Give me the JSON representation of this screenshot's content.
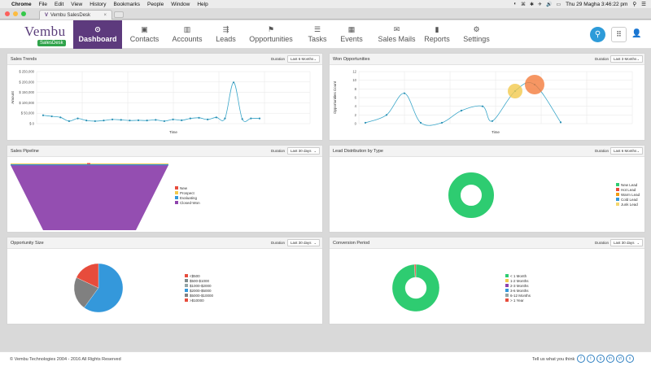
{
  "mac_menu": {
    "apple": "",
    "items": [
      "Chrome",
      "File",
      "Edit",
      "View",
      "History",
      "Bookmarks",
      "People",
      "Window",
      "Help"
    ],
    "tray_icons": [
      "dropbox-icon",
      "wifi-icon",
      "volume-icon",
      "battery-icon"
    ],
    "clock": "Thu 29 Magha  3:46:22 pm",
    "tray_symbols": [
      "◐",
      "⌘",
      "✱",
      "✈",
      "🔊",
      "▭"
    ]
  },
  "browser": {
    "tab_title": "Vembu SalesDesk",
    "tab_icon": "V",
    "close": "×"
  },
  "header": {
    "logo_name": "Vembu",
    "logo_sub": "SalesDesk",
    "nav": [
      {
        "label": "Dashboard",
        "icon": "dashboard-icon",
        "glyph": "⊙",
        "active": true
      },
      {
        "label": "Contacts",
        "icon": "contacts-icon",
        "glyph": "▣"
      },
      {
        "label": "Accounts",
        "icon": "accounts-icon",
        "glyph": "▥"
      },
      {
        "label": "Leads",
        "icon": "leads-icon",
        "glyph": "⇶"
      },
      {
        "label": "Opportunities",
        "icon": "opportunities-icon",
        "glyph": "⚑"
      },
      {
        "label": "Tasks",
        "icon": "tasks-icon",
        "glyph": "☰"
      },
      {
        "label": "Events",
        "icon": "events-icon",
        "glyph": "▦"
      },
      {
        "label": "Sales Mails",
        "icon": "mail-icon",
        "glyph": "✉"
      },
      {
        "label": "Reports",
        "icon": "reports-icon",
        "glyph": "▮"
      },
      {
        "label": "Settings",
        "icon": "settings-icon",
        "glyph": "⚙"
      }
    ],
    "search_glyph": "⚲",
    "grid_glyph": "⠿",
    "user_glyph": "👤"
  },
  "panels": {
    "sales_trends": {
      "title": "Sales Trends",
      "duration_label": "Duration",
      "duration_value": "Last 6 Months",
      "ylabel": "Amount",
      "xlabel": "Time"
    },
    "won_opps": {
      "title": "Won Opportunities",
      "duration_label": "Duration",
      "duration_value": "Last 3 Months",
      "ylabel": "Opportunities Count",
      "xlabel": "Time"
    },
    "pipeline": {
      "title": "Sales Pipeline",
      "duration_label": "Duration",
      "duration_value": "Last 30 days"
    },
    "lead_dist": {
      "title": "Lead Distribution by Type",
      "duration_label": "Duration",
      "duration_value": "Last 6 Months"
    },
    "opp_size": {
      "title": "Opportunity Size",
      "duration_label": "Duration",
      "duration_value": "Last 30 days"
    },
    "conversion": {
      "title": "Conversion Period",
      "duration_label": "Duration",
      "duration_value": "Last 30 days"
    }
  },
  "footer": {
    "copyright": "© Vembu Technologies   2004 - 2016   All Rights Reserved",
    "tell": "Tell us what you think",
    "socials": [
      "f",
      "t",
      "g",
      "in",
      "yt",
      "s"
    ]
  },
  "chart_data": [
    {
      "id": "sales_trends",
      "type": "line",
      "title": "Sales Trends",
      "xlabel": "Time",
      "ylabel": "Amount",
      "y_ticks": [
        "$ 250,000",
        "$ 200,000",
        "$ 150,000",
        "$ 100,000",
        "$ 50,000",
        "$ 0"
      ],
      "ylim": [
        0,
        250000
      ],
      "values": [
        40000,
        35000,
        30000,
        12000,
        25000,
        15000,
        12000,
        15000,
        20000,
        18000,
        15000,
        16000,
        15000,
        18000,
        12000,
        20000,
        16000,
        25000,
        28000,
        20000,
        30000,
        25000,
        198000,
        22000,
        25000,
        25000
      ]
    },
    {
      "id": "won_opps",
      "type": "line",
      "title": "Won Opportunities",
      "xlabel": "Time",
      "ylabel": "Opportunities Count",
      "y_ticks": [
        "12",
        "10",
        "8",
        "6",
        "4",
        "2",
        "0"
      ],
      "ylim": [
        0,
        12
      ],
      "points": [
        {
          "i": 0,
          "v": 0.2
        },
        {
          "i": 1,
          "v": 2
        },
        {
          "i": 2,
          "v": 7
        },
        {
          "i": 3,
          "v": 0.2
        },
        {
          "i": 4,
          "v": 0.2
        },
        {
          "i": 5,
          "v": 3
        },
        {
          "i": 6,
          "v": 4
        },
        {
          "i": 7,
          "v": 0.6
        },
        {
          "i": 8,
          "v": 7.5
        },
        {
          "i": 9,
          "v": 9
        },
        {
          "i": 10,
          "v": 0.3
        }
      ],
      "bubbles": [
        {
          "i": 8,
          "v": 7.5,
          "r": 9,
          "color": "#f2c94c"
        },
        {
          "i": 9,
          "v": 9,
          "r": 12,
          "color": "#f47c3c"
        }
      ]
    },
    {
      "id": "pipeline",
      "type": "area",
      "title": "Sales Pipeline",
      "series": [
        {
          "name": "New",
          "color": "#e74c3c"
        },
        {
          "name": "Prospect",
          "color": "#f2c94c"
        },
        {
          "name": "Evaluating",
          "color": "#3498db"
        },
        {
          "name": "Closed-Won",
          "color": "#8e44ad"
        }
      ]
    },
    {
      "id": "lead_dist",
      "type": "pie",
      "title": "Lead Distribution by Type",
      "series": [
        {
          "name": "New Lead",
          "value": 100,
          "color": "#2ecc71"
        },
        {
          "name": "Hot Lead",
          "value": 0,
          "color": "#e74c3c"
        },
        {
          "name": "Warm Lead",
          "value": 0,
          "color": "#f39c12"
        },
        {
          "name": "Cold Lead",
          "value": 0,
          "color": "#3498db"
        },
        {
          "name": "Junk Lead",
          "value": 0,
          "color": "#f5d76e"
        }
      ]
    },
    {
      "id": "opp_size",
      "type": "pie",
      "title": "Opportunity Size",
      "series": [
        {
          "name": "<$500",
          "value": 0,
          "color": "#e74c3c"
        },
        {
          "name": "$500-$1000",
          "value": 0,
          "color": "#7f8c8d"
        },
        {
          "name": "$1000-$2000",
          "value": 0,
          "color": "#95a5a6"
        },
        {
          "name": "$2000-$5000",
          "value": 60,
          "color": "#3498db"
        },
        {
          "name": "$5000-$10000",
          "value": 22,
          "color": "#808080"
        },
        {
          "name": ">$10000",
          "value": 18,
          "color": "#e74c3c"
        }
      ]
    },
    {
      "id": "conversion",
      "type": "pie",
      "title": "Conversion Period",
      "series": [
        {
          "name": "< 1 Month",
          "value": 99,
          "color": "#2ecc71"
        },
        {
          "name": "1-2 Months",
          "value": 0,
          "color": "#f2c94c"
        },
        {
          "name": "2-3 Months",
          "value": 0,
          "color": "#8e44ad"
        },
        {
          "name": "3-6 Months",
          "value": 0,
          "color": "#3498db"
        },
        {
          "name": "6-12 Months",
          "value": 0,
          "color": "#95a5a6"
        },
        {
          "name": "> 1 Year",
          "value": 1,
          "color": "#e74c3c"
        }
      ]
    }
  ]
}
